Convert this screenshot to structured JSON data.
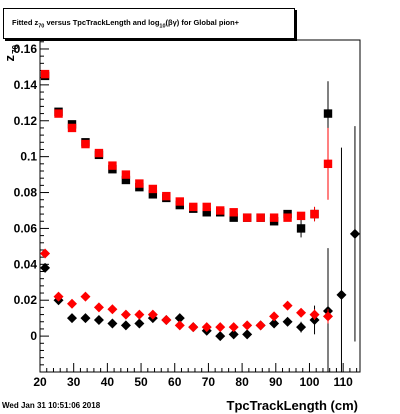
{
  "chart_data": {
    "type": "scatter",
    "title_parts": {
      "p1": "Fitted  z",
      "sub1": "70",
      "p2": " versus TpcTrackLength and log",
      "sub2": "10",
      "p3": "(βγ) for Global pion+"
    },
    "xlabel": "TpcTrackLength (cm)",
    "ylabel": "z",
    "ylabel_sub": "70",
    "xlim": [
      20,
      115
    ],
    "ylim": [
      -0.02,
      0.165
    ],
    "x_ticks": [
      20,
      30,
      40,
      50,
      60,
      70,
      80,
      90,
      100,
      110
    ],
    "y_ticks": [
      0,
      0.02,
      0.04,
      0.06,
      0.08,
      0.1,
      0.12,
      0.14,
      0.16
    ],
    "grid": false,
    "series": [
      {
        "marker": "square",
        "color": "#000000",
        "points": [
          {
            "x": 21.5,
            "y": 0.145,
            "err": 0.001
          },
          {
            "x": 25.5,
            "y": 0.125,
            "err": 0.001
          },
          {
            "x": 29.5,
            "y": 0.118,
            "err": 0.001
          },
          {
            "x": 33.5,
            "y": 0.108,
            "err": 0.001
          },
          {
            "x": 37.5,
            "y": 0.101,
            "err": 0.001
          },
          {
            "x": 41.5,
            "y": 0.093,
            "err": 0.001
          },
          {
            "x": 45.5,
            "y": 0.087,
            "err": 0.001
          },
          {
            "x": 49.5,
            "y": 0.083,
            "err": 0.001
          },
          {
            "x": 53.5,
            "y": 0.079,
            "err": 0.001
          },
          {
            "x": 57.5,
            "y": 0.077,
            "err": 0.001
          },
          {
            "x": 61.5,
            "y": 0.073,
            "err": 0.001
          },
          {
            "x": 65.5,
            "y": 0.071,
            "err": 0.001
          },
          {
            "x": 69.5,
            "y": 0.069,
            "err": 0.001
          },
          {
            "x": 73.5,
            "y": 0.069,
            "err": 0.001
          },
          {
            "x": 77.5,
            "y": 0.066,
            "err": 0.001
          },
          {
            "x": 81.5,
            "y": 0.066,
            "err": 0.001
          },
          {
            "x": 85.5,
            "y": 0.066,
            "err": 0.001
          },
          {
            "x": 89.5,
            "y": 0.064,
            "err": 0.001
          },
          {
            "x": 93.5,
            "y": 0.068,
            "err": 0.001
          },
          {
            "x": 97.5,
            "y": 0.06,
            "err": 0.005
          },
          {
            "x": 101.5,
            "y": 0.068,
            "err": 0.004
          },
          {
            "x": 105.5,
            "y": 0.124,
            "err": 0.018
          }
        ]
      },
      {
        "marker": "square",
        "color": "#ff0000",
        "points": [
          {
            "x": 21.5,
            "y": 0.146,
            "err": 0.001
          },
          {
            "x": 25.5,
            "y": 0.124,
            "err": 0.001
          },
          {
            "x": 29.5,
            "y": 0.116,
            "err": 0.001
          },
          {
            "x": 33.5,
            "y": 0.107,
            "err": 0.001
          },
          {
            "x": 37.5,
            "y": 0.102,
            "err": 0.001
          },
          {
            "x": 41.5,
            "y": 0.095,
            "err": 0.001
          },
          {
            "x": 45.5,
            "y": 0.09,
            "err": 0.001
          },
          {
            "x": 49.5,
            "y": 0.085,
            "err": 0.001
          },
          {
            "x": 53.5,
            "y": 0.082,
            "err": 0.001
          },
          {
            "x": 57.5,
            "y": 0.078,
            "err": 0.001
          },
          {
            "x": 61.5,
            "y": 0.075,
            "err": 0.001
          },
          {
            "x": 65.5,
            "y": 0.072,
            "err": 0.001
          },
          {
            "x": 69.5,
            "y": 0.072,
            "err": 0.001
          },
          {
            "x": 73.5,
            "y": 0.07,
            "err": 0.001
          },
          {
            "x": 77.5,
            "y": 0.069,
            "err": 0.001
          },
          {
            "x": 81.5,
            "y": 0.066,
            "err": 0.001
          },
          {
            "x": 85.5,
            "y": 0.066,
            "err": 0.001
          },
          {
            "x": 89.5,
            "y": 0.066,
            "err": 0.001
          },
          {
            "x": 93.5,
            "y": 0.066,
            "err": 0.001
          },
          {
            "x": 97.5,
            "y": 0.067,
            "err": 0.002
          },
          {
            "x": 101.5,
            "y": 0.068,
            "err": 0.004
          },
          {
            "x": 105.5,
            "y": 0.096,
            "err": 0.02
          }
        ]
      },
      {
        "marker": "diamond",
        "color": "#000000",
        "points": [
          {
            "x": 21.5,
            "y": 0.038,
            "err": 0.001
          },
          {
            "x": 25.5,
            "y": 0.02,
            "err": 0.001
          },
          {
            "x": 29.5,
            "y": 0.01,
            "err": 0.001
          },
          {
            "x": 33.5,
            "y": 0.01,
            "err": 0.001
          },
          {
            "x": 37.5,
            "y": 0.009,
            "err": 0.001
          },
          {
            "x": 41.5,
            "y": 0.007,
            "err": 0.001
          },
          {
            "x": 45.5,
            "y": 0.006,
            "err": 0.001
          },
          {
            "x": 49.5,
            "y": 0.007,
            "err": 0.001
          },
          {
            "x": 53.5,
            "y": 0.01,
            "err": 0.001
          },
          {
            "x": 57.5,
            "y": 0.009,
            "err": 0.001
          },
          {
            "x": 61.5,
            "y": 0.01,
            "err": 0.001
          },
          {
            "x": 65.5,
            "y": 0.005,
            "err": 0.001
          },
          {
            "x": 69.5,
            "y": 0.003,
            "err": 0.001
          },
          {
            "x": 73.5,
            "y": 0.0,
            "err": 0.001
          },
          {
            "x": 77.5,
            "y": 0.001,
            "err": 0.001
          },
          {
            "x": 81.5,
            "y": 0.001,
            "err": 0.001
          },
          {
            "x": 85.5,
            "y": 0.006,
            "err": 0.001
          },
          {
            "x": 89.5,
            "y": 0.007,
            "err": 0.001
          },
          {
            "x": 93.5,
            "y": 0.008,
            "err": 0.002
          },
          {
            "x": 97.5,
            "y": 0.005,
            "err": 0.003
          },
          {
            "x": 101.5,
            "y": 0.009,
            "err": 0.008
          },
          {
            "x": 105.5,
            "y": 0.014,
            "err": 0.035
          },
          {
            "x": 109.5,
            "y": 0.023,
            "err": 0.082
          },
          {
            "x": 113.5,
            "y": 0.057,
            "err": 0.06
          }
        ]
      },
      {
        "marker": "diamond",
        "color": "#ff0000",
        "points": [
          {
            "x": 21.5,
            "y": 0.046,
            "err": 0.001
          },
          {
            "x": 25.5,
            "y": 0.022,
            "err": 0.001
          },
          {
            "x": 29.5,
            "y": 0.018,
            "err": 0.001
          },
          {
            "x": 33.5,
            "y": 0.022,
            "err": 0.001
          },
          {
            "x": 37.5,
            "y": 0.016,
            "err": 0.001
          },
          {
            "x": 41.5,
            "y": 0.015,
            "err": 0.001
          },
          {
            "x": 45.5,
            "y": 0.012,
            "err": 0.001
          },
          {
            "x": 49.5,
            "y": 0.012,
            "err": 0.001
          },
          {
            "x": 53.5,
            "y": 0.012,
            "err": 0.001
          },
          {
            "x": 57.5,
            "y": 0.009,
            "err": 0.001
          },
          {
            "x": 61.5,
            "y": 0.006,
            "err": 0.001
          },
          {
            "x": 65.5,
            "y": 0.005,
            "err": 0.001
          },
          {
            "x": 69.5,
            "y": 0.005,
            "err": 0.001
          },
          {
            "x": 73.5,
            "y": 0.005,
            "err": 0.001
          },
          {
            "x": 77.5,
            "y": 0.005,
            "err": 0.001
          },
          {
            "x": 81.5,
            "y": 0.006,
            "err": 0.001
          },
          {
            "x": 85.5,
            "y": 0.006,
            "err": 0.001
          },
          {
            "x": 89.5,
            "y": 0.011,
            "err": 0.001
          },
          {
            "x": 93.5,
            "y": 0.017,
            "err": 0.002
          },
          {
            "x": 97.5,
            "y": 0.013,
            "err": 0.002
          },
          {
            "x": 101.5,
            "y": 0.012,
            "err": 0.003
          },
          {
            "x": 105.5,
            "y": 0.011,
            "err": 0.004
          }
        ]
      }
    ]
  },
  "footer": {
    "date": "Wed Jan 31 10:51:06 2018"
  }
}
